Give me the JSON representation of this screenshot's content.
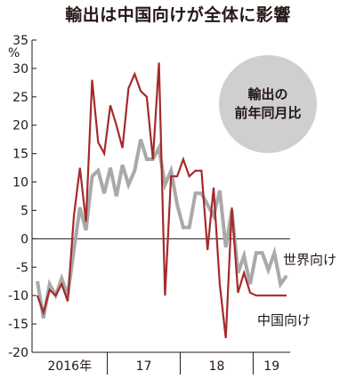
{
  "chart_data": {
    "type": "line",
    "title": "輸出は中国向けが全体に影響",
    "subtitle": "輸出の 前年同月比",
    "subtitle_lines": [
      "輸出の",
      "前年同月比"
    ],
    "ylabel": "%",
    "ylim": [
      -20,
      35
    ],
    "yticks": [
      35,
      30,
      25,
      20,
      15,
      10,
      5,
      0,
      -5,
      -10,
      -15,
      -20
    ],
    "x_groups": [
      "2016年",
      "17",
      "18",
      "19"
    ],
    "x": [
      "2016-01",
      "2016-02",
      "2016-03",
      "2016-04",
      "2016-05",
      "2016-06",
      "2016-07",
      "2016-08",
      "2016-09",
      "2016-10",
      "2016-11",
      "2016-12",
      "2017-01",
      "2017-02",
      "2017-03",
      "2017-04",
      "2017-05",
      "2017-06",
      "2017-07",
      "2017-08",
      "2017-09",
      "2017-10",
      "2017-11",
      "2017-12",
      "2018-01",
      "2018-02",
      "2018-03",
      "2018-04",
      "2018-05",
      "2018-06",
      "2018-07",
      "2018-08",
      "2018-09",
      "2018-10",
      "2018-11",
      "2018-12",
      "2019-01",
      "2019-02",
      "2019-03",
      "2019-04",
      "2019-05",
      "2019-06"
    ],
    "series": [
      {
        "name": "世界向け",
        "color": "#a9a9a9",
        "values": [
          -7.5,
          -14,
          -8,
          -10,
          -7,
          -10,
          -2,
          5.5,
          1.5,
          11,
          12,
          8,
          12.5,
          7.5,
          13,
          9.5,
          12,
          17.5,
          14,
          14,
          16,
          9.5,
          12,
          6,
          2,
          2,
          8,
          8,
          6,
          4,
          8.5,
          -1.5,
          5,
          -6,
          -3,
          -8,
          -2.5,
          -2.5,
          -5.5,
          -2.5,
          -8,
          -6.5
        ]
      },
      {
        "name": "中国向け",
        "color": "#a52a2a",
        "values": [
          -10,
          -13,
          -9,
          -10,
          -8,
          -11,
          4,
          12.5,
          3,
          28,
          17,
          15,
          23.5,
          20,
          16,
          26.5,
          29,
          26,
          25,
          14,
          31,
          -10,
          11,
          11,
          14,
          11,
          12,
          12,
          -2,
          9,
          -8,
          -17.5,
          5.5,
          -9.5,
          -6,
          -9.5,
          -10,
          -10,
          -10,
          -10,
          -10,
          -10
        ]
      }
    ],
    "grid": false,
    "legend": "inline-labels"
  }
}
